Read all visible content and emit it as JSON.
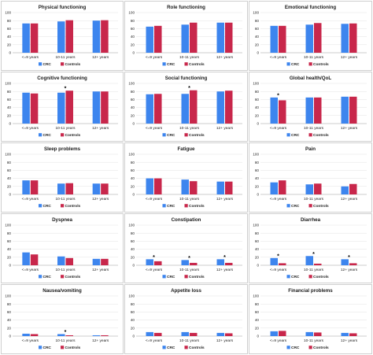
{
  "colors": {
    "crc": "#3d85ee",
    "controls": "#c8274b",
    "grid": "#e3e3e3",
    "axis": "#999999"
  },
  "legend": {
    "crc": "CRC",
    "controls": "Controls"
  },
  "chart_data": [
    {
      "type": "bar",
      "title": "Physical functioning",
      "categories": [
        "<=9 years",
        "10-11 years",
        "12+ years"
      ],
      "ylim": [
        0,
        100
      ],
      "yticks": [
        0,
        20,
        40,
        60,
        80,
        100
      ],
      "series": [
        {
          "name": "CRC",
          "values": [
            73,
            78,
            80
          ]
        },
        {
          "name": "Controls",
          "values": [
            73,
            81,
            81
          ]
        }
      ],
      "significant": []
    },
    {
      "type": "bar",
      "title": "Role functioning",
      "categories": [
        "<=9 years",
        "10-11 years",
        "12+ years"
      ],
      "ylim": [
        0,
        100
      ],
      "yticks": [
        0,
        20,
        40,
        60,
        80,
        100
      ],
      "series": [
        {
          "name": "CRC",
          "values": [
            65,
            70,
            75
          ]
        },
        {
          "name": "Controls",
          "values": [
            67,
            75,
            75
          ]
        }
      ],
      "significant": []
    },
    {
      "type": "bar",
      "title": "Emotional functioning",
      "categories": [
        "<=9 years",
        "10-11 years",
        "12+ years"
      ],
      "ylim": [
        0,
        100
      ],
      "yticks": [
        0,
        20,
        40,
        60,
        80,
        100
      ],
      "series": [
        {
          "name": "CRC",
          "values": [
            67,
            70,
            72
          ]
        },
        {
          "name": "Controls",
          "values": [
            67,
            74,
            73
          ]
        }
      ],
      "significant": []
    },
    {
      "type": "bar",
      "title": "Cognitive functioning",
      "categories": [
        "<=9 years",
        "10-11 years",
        "12+ years"
      ],
      "ylim": [
        0,
        100
      ],
      "yticks": [
        0,
        20,
        40,
        60,
        80,
        100
      ],
      "series": [
        {
          "name": "CRC",
          "values": [
            77,
            77,
            80
          ]
        },
        {
          "name": "Controls",
          "values": [
            75,
            82,
            80
          ]
        }
      ],
      "significant": [
        1
      ]
    },
    {
      "type": "bar",
      "title": "Social functioning",
      "categories": [
        "<=9 years",
        "10-11 years",
        "12+ years"
      ],
      "ylim": [
        0,
        100
      ],
      "yticks": [
        0,
        20,
        40,
        60,
        80,
        100
      ],
      "series": [
        {
          "name": "CRC",
          "values": [
            73,
            74,
            80
          ]
        },
        {
          "name": "Controls",
          "values": [
            74,
            83,
            82
          ]
        }
      ],
      "significant": [
        1
      ]
    },
    {
      "type": "bar",
      "title": "Global health/QoL",
      "categories": [
        "<=9 years",
        "10-11 years",
        "12+ years"
      ],
      "ylim": [
        0,
        100
      ],
      "yticks": [
        0,
        20,
        40,
        60,
        80,
        100
      ],
      "series": [
        {
          "name": "CRC",
          "values": [
            65,
            65,
            67
          ]
        },
        {
          "name": "Controls",
          "values": [
            58,
            65,
            67
          ]
        }
      ],
      "significant": [
        0
      ]
    },
    {
      "type": "bar",
      "title": "Sleep problems",
      "categories": [
        "<=9 years",
        "10-11 years",
        "12+ years"
      ],
      "ylim": [
        0,
        100
      ],
      "yticks": [
        0,
        20,
        40,
        60,
        80,
        100
      ],
      "series": [
        {
          "name": "CRC",
          "values": [
            35,
            27,
            27
          ]
        },
        {
          "name": "Controls",
          "values": [
            35,
            28,
            27
          ]
        }
      ],
      "significant": []
    },
    {
      "type": "bar",
      "title": "Fatigue",
      "categories": [
        "<=9 years",
        "10-11 years",
        "12+ years"
      ],
      "ylim": [
        0,
        100
      ],
      "yticks": [
        0,
        20,
        40,
        60,
        80,
        100
      ],
      "series": [
        {
          "name": "CRC",
          "values": [
            40,
            37,
            32
          ]
        },
        {
          "name": "Controls",
          "values": [
            40,
            33,
            32
          ]
        }
      ],
      "significant": []
    },
    {
      "type": "bar",
      "title": "Pain",
      "categories": [
        "<=9 years",
        "10-11 years",
        "12+ years"
      ],
      "ylim": [
        0,
        100
      ],
      "yticks": [
        0,
        20,
        40,
        60,
        80,
        100
      ],
      "series": [
        {
          "name": "CRC",
          "values": [
            30,
            25,
            20
          ]
        },
        {
          "name": "Controls",
          "values": [
            35,
            27,
            26
          ]
        }
      ],
      "significant": []
    },
    {
      "type": "bar",
      "title": "Dyspnea",
      "categories": [
        "<=9 years",
        "10-11 years",
        "12+ years"
      ],
      "ylim": [
        0,
        100
      ],
      "yticks": [
        0,
        20,
        40,
        60,
        80,
        100
      ],
      "series": [
        {
          "name": "CRC",
          "values": [
            32,
            22,
            16
          ]
        },
        {
          "name": "Controls",
          "values": [
            27,
            18,
            16
          ]
        }
      ],
      "significant": []
    },
    {
      "type": "bar",
      "title": "Constipation",
      "categories": [
        "<=9 years",
        "10-11 years",
        "12+ years"
      ],
      "ylim": [
        0,
        100
      ],
      "yticks": [
        0,
        20,
        40,
        60,
        80,
        100
      ],
      "series": [
        {
          "name": "CRC",
          "values": [
            15,
            13,
            15
          ]
        },
        {
          "name": "Controls",
          "values": [
            10,
            6,
            6
          ]
        }
      ],
      "significant": [
        0,
        1,
        2
      ]
    },
    {
      "type": "bar",
      "title": "Diarrhea",
      "categories": [
        "<=9 years",
        "10-11 years",
        "12+ years"
      ],
      "ylim": [
        0,
        100
      ],
      "yticks": [
        0,
        20,
        40,
        60,
        80,
        100
      ],
      "series": [
        {
          "name": "CRC",
          "values": [
            18,
            23,
            15
          ]
        },
        {
          "name": "Controls",
          "values": [
            5,
            4,
            5
          ]
        }
      ],
      "significant": [
        0,
        1,
        2
      ]
    },
    {
      "type": "bar",
      "title": "Nausea/vomiting",
      "categories": [
        "<=9 years",
        "10-11 years",
        "12+ years"
      ],
      "ylim": [
        0,
        100
      ],
      "yticks": [
        0,
        20,
        40,
        60,
        80,
        100
      ],
      "series": [
        {
          "name": "CRC",
          "values": [
            6,
            5,
            2
          ]
        },
        {
          "name": "Controls",
          "values": [
            5,
            2,
            2
          ]
        }
      ],
      "significant": [
        1
      ]
    },
    {
      "type": "bar",
      "title": "Appetite loss",
      "categories": [
        "<=9 years",
        "10-11 years",
        "12+ years"
      ],
      "ylim": [
        0,
        100
      ],
      "yticks": [
        0,
        20,
        40,
        60,
        80,
        100
      ],
      "series": [
        {
          "name": "CRC",
          "values": [
            10,
            10,
            8
          ]
        },
        {
          "name": "Controls",
          "values": [
            8,
            8,
            7
          ]
        }
      ],
      "significant": []
    },
    {
      "type": "bar",
      "title": "Financial problems",
      "categories": [
        "<=9 years",
        "10-11 years",
        "12+ years"
      ],
      "ylim": [
        0,
        100
      ],
      "yticks": [
        0,
        20,
        40,
        60,
        80,
        100
      ],
      "series": [
        {
          "name": "CRC",
          "values": [
            12,
            10,
            8
          ]
        },
        {
          "name": "Controls",
          "values": [
            13,
            9,
            7
          ]
        }
      ],
      "significant": []
    }
  ]
}
